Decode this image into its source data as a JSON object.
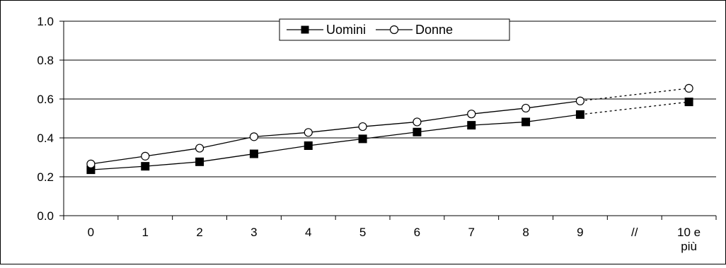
{
  "chart_data": {
    "type": "line",
    "categories": [
      "0",
      "1",
      "2",
      "3",
      "4",
      "5",
      "6",
      "7",
      "8",
      "9",
      "//",
      "10 e più"
    ],
    "series": [
      {
        "name": "Uomini",
        "marker": "filled-square",
        "values": [
          0.236,
          0.254,
          0.277,
          0.318,
          0.36,
          0.395,
          0.43,
          0.465,
          0.482,
          0.52,
          null,
          0.585
        ]
      },
      {
        "name": "Donne",
        "marker": "hollow-circle",
        "values": [
          0.266,
          0.306,
          0.347,
          0.406,
          0.428,
          0.458,
          0.482,
          0.523,
          0.553,
          0.59,
          null,
          0.655
        ]
      }
    ],
    "ylim": [
      0.0,
      1.0
    ],
    "yticks": [
      "0.0",
      "0.2",
      "0.4",
      "0.6",
      "0.8",
      "1.0"
    ],
    "grid": true,
    "legend_position": "top-center",
    "gap_segment": "dotted",
    "title": "",
    "xlabel": "",
    "ylabel": ""
  }
}
